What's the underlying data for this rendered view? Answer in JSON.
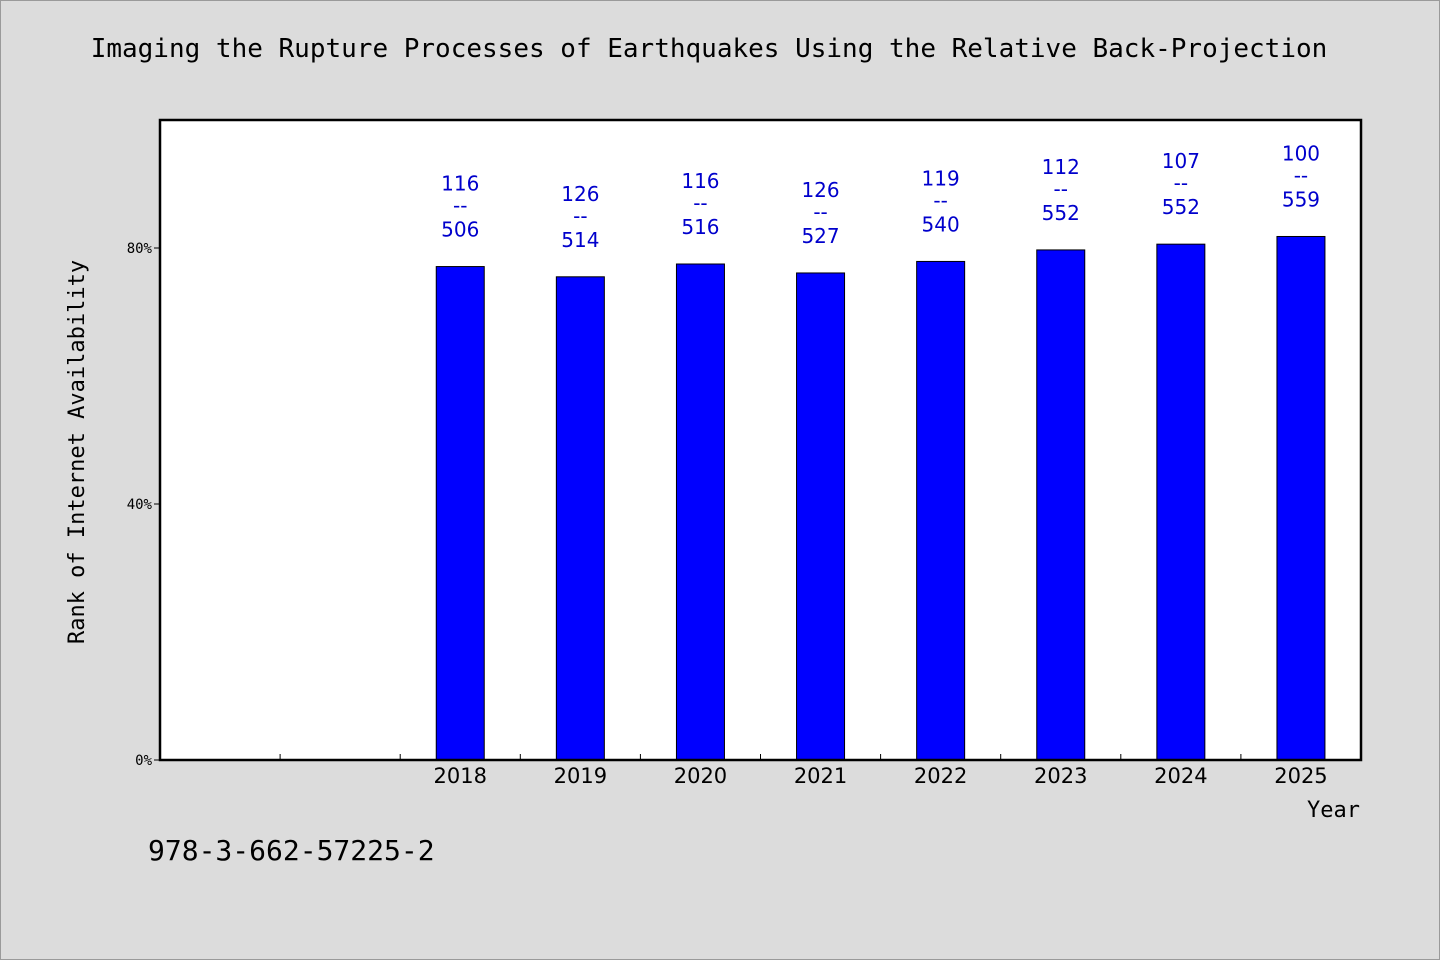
{
  "header": {
    "title": "Imaging the Rupture Processes of Earthquakes Using the Relative Back-Projection"
  },
  "footer": {
    "isbn": "978-3-662-57225-2"
  },
  "colors": {
    "bar": "#0000ff",
    "label": "#0000cc",
    "background": "#dcdcdc",
    "plot": "#ffffff"
  },
  "chart_data": {
    "type": "bar",
    "title": "Imaging the Rupture Processes of Earthquakes Using the Relative Back-Projection",
    "xlabel": "Year",
    "ylabel": "Rank of Internet Availability",
    "ylim": [
      0,
      100
    ],
    "yticks": [
      0,
      40,
      80
    ],
    "ytick_labels": [
      "0%",
      "40%",
      "80%"
    ],
    "grid": false,
    "categories": [
      "",
      "",
      "2018",
      "2019",
      "2020",
      "2021",
      "2022",
      "2023",
      "2024",
      "2025"
    ],
    "values": [
      null,
      null,
      77.1,
      75.5,
      77.5,
      76.1,
      77.9,
      79.7,
      80.6,
      81.8
    ],
    "label_top": [
      null,
      null,
      "116",
      "126",
      "116",
      "126",
      "119",
      "112",
      "107",
      "100"
    ],
    "label_sep": [
      null,
      null,
      "--",
      "--",
      "--",
      "--",
      "--",
      "--",
      "--",
      "--"
    ],
    "label_bottom": [
      null,
      null,
      "506",
      "514",
      "516",
      "527",
      "540",
      "552",
      "552",
      "559"
    ]
  }
}
